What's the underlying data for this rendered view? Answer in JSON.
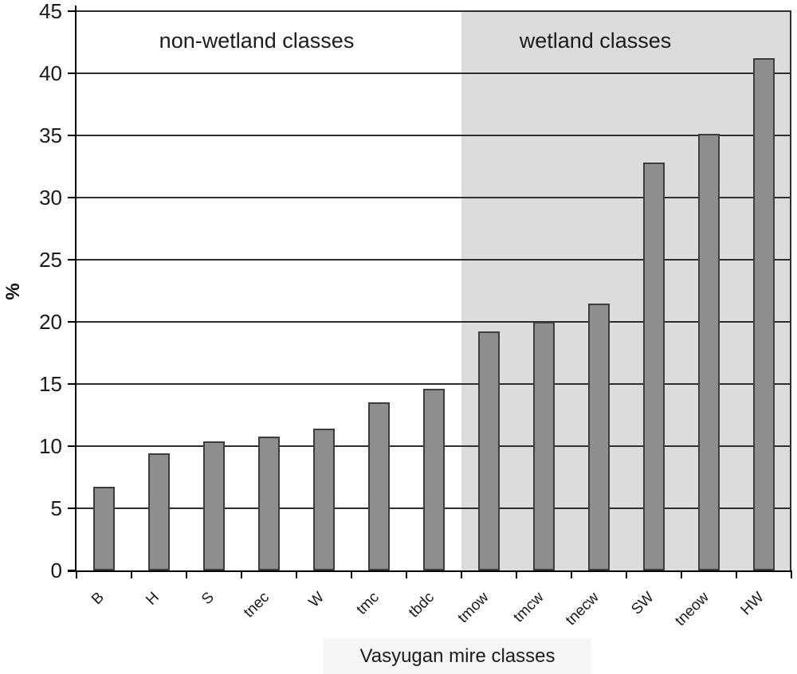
{
  "chart_data": {
    "type": "bar",
    "title": "",
    "xlabel": "Vasyugan mire classes",
    "ylabel": "%",
    "ylim": [
      0,
      45
    ],
    "yticks": [
      0,
      5,
      10,
      15,
      20,
      25,
      30,
      35,
      40,
      45
    ],
    "grid": true,
    "legend": "none",
    "categories": [
      "B",
      "H",
      "S",
      "tnec",
      "W",
      "tmc",
      "tbdc",
      "tmow",
      "tmcw",
      "tnecw",
      "SW",
      "tneow",
      "HW"
    ],
    "values": [
      6.7,
      9.4,
      10.4,
      10.8,
      11.4,
      13.5,
      14.6,
      19.2,
      20.0,
      21.5,
      32.8,
      35.1,
      41.2
    ],
    "groups": [
      {
        "label": "non-wetland classes",
        "start_category": "B",
        "end_category": "tbdc",
        "start_index": 0,
        "end_index": 6,
        "background": "#ffffff"
      },
      {
        "label": "wetland classes",
        "start_category": "tmow",
        "end_category": "HW",
        "start_index": 7,
        "end_index": 12,
        "background": "#dcdcde"
      }
    ],
    "colors": {
      "bar_fill": "#8e8e8e",
      "bar_border": "#3d3d3d",
      "gridline": "#2e2e2e",
      "axis": "#000000",
      "wetland_background": "#dcdcde",
      "xlabel_box_background": "#f5f6f8",
      "text": "#1a1a1a"
    }
  }
}
